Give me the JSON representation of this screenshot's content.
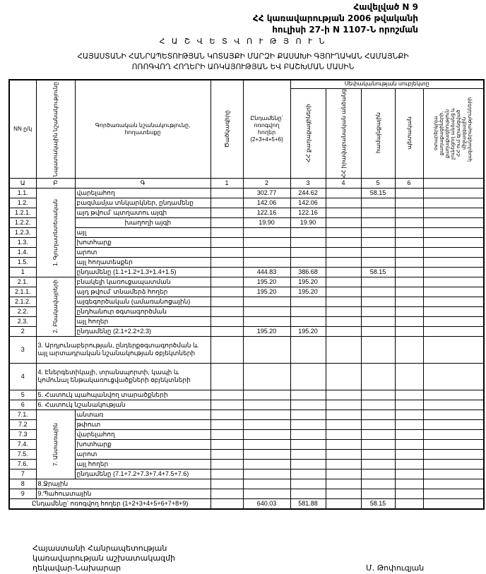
{
  "annex": {
    "line1": "Հավելված N 9",
    "line2": "ՀՀ կառավարության 2006 թվականի",
    "line3": "հուլիսի 27-ի N 1107-Ն որոշման"
  },
  "title": "Հ Ա Շ Վ Ե Տ Վ Ո Ւ Թ Յ Ո Ւ Ն",
  "subtitle": {
    "line1": "ՀԱՅԱՍՏԱՆԻ ՀԱՆՐԱՊԵՏՈՒԹՅԱՆ ԿՈՏԱՅՔԻ ՄԱՐԶԻ ՔԱՍԱԽԻ ԳՅՈՒՂԱԿԱՆ ՀԱՄԱՅՆՔԻ",
    "line2": "ՈՌՈԳՎՈՂ ՀՈՂԵՐԻ ԱՌԿԱՅՈՒԹՅԱՆ ԵՎ ԲԱՇԽՄԱՆ ՄԱՍԻՆ"
  },
  "table": {
    "headers": {
      "nn": "NN ը/կ",
      "purpose": "Նպատակային նշանակությունը",
      "function": "Գործառական նշանակությունը, հողատեսքը",
      "code": "Ծածկագիրը",
      "total": "Ընդամենը՝ ոռոգվող հողեր (2+3+4+5+6)",
      "ownership": "Սեփականության սուբյեկտը",
      "owners": [
        "ՀՀ քաղաքացիների",
        "ՀՀ իրավաբանական անձանց",
        "համայնքային",
        "պետական",
        "օտարերկրյա քաղաքացիների, քաղաքացիություն չունեցող անձանց և ՀՀ-ում գրանցված միջազգային կազմակերպությունների"
      ]
    },
    "letters": [
      "Ա",
      "Բ",
      "Գ",
      "1",
      "2",
      "3",
      "4",
      "5",
      "6"
    ],
    "categories": {
      "c1": "1. Գյուղատնտեսական",
      "c2": "2. Բնակավայրերի",
      "c7": "7. Անտառային"
    },
    "rows": [
      {
        "code": "1.1.",
        "desc": "վարելահող",
        "vals": [
          "",
          "302.77",
          "244.62",
          "",
          "58.15",
          "",
          ""
        ]
      },
      {
        "code": "1.2.",
        "desc": "բազմամյա տնկարկներ, ընդամենը",
        "vals": [
          "",
          "142.06",
          "142.06",
          "",
          "",
          "",
          ""
        ]
      },
      {
        "code": "1.2.1.",
        "desc": "այդ թվում՝        պտղատու այգի",
        "vals": [
          "",
          "122.16",
          "122.16",
          "",
          "",
          "",
          ""
        ]
      },
      {
        "code": "1.2.2.",
        "desc": "խաղողի այգի",
        "vals": [
          "",
          "19.90",
          "19.90",
          "",
          "",
          "",
          ""
        ]
      },
      {
        "code": "1.2.3.",
        "desc": "այլ",
        "vals": [
          "",
          "",
          "",
          "",
          "",
          "",
          ""
        ]
      },
      {
        "code": "1.3.",
        "desc": "խոտհարք",
        "vals": [
          "",
          "",
          "",
          "",
          "",
          "",
          ""
        ]
      },
      {
        "code": "1.4.",
        "desc": "արոտ",
        "vals": [
          "",
          "",
          "",
          "",
          "",
          "",
          ""
        ]
      },
      {
        "code": "1.5.",
        "desc": "այլ հողատեսքեր",
        "vals": [
          "",
          "",
          "",
          "",
          "",
          "",
          ""
        ]
      },
      {
        "code": "1",
        "desc": "ընդամենը (1.1+1.2+1.3+1.4+1.5)",
        "vals": [
          "",
          "444.83",
          "386.68",
          "",
          "58.15",
          "",
          ""
        ]
      },
      {
        "code": "2.1.",
        "desc": "բնակելի կառուցապատման",
        "vals": [
          "",
          "195.20",
          "195.20",
          "",
          "",
          "",
          ""
        ]
      },
      {
        "code": "2.1.1.",
        "desc": "այդ թվում՝ տնամերձ հողեր",
        "vals": [
          "",
          "195.20",
          "195.20",
          "",
          "",
          "",
          ""
        ]
      },
      {
        "code": "2.1.2.",
        "desc": "այգեգործական (ամառանոցային)",
        "vals": [
          "",
          "",
          "",
          "",
          "",
          "",
          ""
        ]
      },
      {
        "code": "2.2.",
        "desc": "ընդհանուր օգտագործման",
        "vals": [
          "",
          "",
          "",
          "",
          "",
          "",
          ""
        ]
      },
      {
        "code": "2.3.",
        "desc": "այլ հողեր",
        "vals": [
          "",
          "",
          "",
          "",
          "",
          "",
          ""
        ]
      },
      {
        "code": "2",
        "desc": "ընդամենը (2.1+2.2+2.3)",
        "vals": [
          "",
          "195.20",
          "195.20",
          "",
          "",
          "",
          ""
        ]
      },
      {
        "code": "3",
        "desc": "3. Արդյունաբերության, ընդերքօգտագործման և այլ արտադրական նշանակության օբյեկտների",
        "vals": [
          "",
          "",
          "",
          "",
          "",
          "",
          ""
        ]
      },
      {
        "code": "4",
        "desc": "4. Էներգետիկայի, տրանսպորտի, կապի և կոմունալ ենթակառուցվածքների օբյեկտների",
        "vals": [
          "",
          "",
          "",
          "",
          "",
          "",
          ""
        ]
      },
      {
        "code": "5",
        "desc": "5. Հատուկ պահպանվող տարածքների",
        "vals": [
          "",
          "",
          "",
          "",
          "",
          "",
          ""
        ]
      },
      {
        "code": "6",
        "desc": "6. Հատուկ նշանակության",
        "vals": [
          "",
          "",
          "",
          "",
          "",
          "",
          ""
        ]
      },
      {
        "code": "7.1.",
        "desc": "անտառ",
        "vals": [
          "",
          "",
          "",
          "",
          "",
          "",
          ""
        ]
      },
      {
        "code": "7.2",
        "desc": "թփուտ",
        "vals": [
          "",
          "",
          "",
          "",
          "",
          "",
          ""
        ]
      },
      {
        "code": "7.3",
        "desc": "վարելահող",
        "vals": [
          "",
          "",
          "",
          "",
          "",
          "",
          ""
        ]
      },
      {
        "code": "7.4.",
        "desc": "խոտհարք",
        "vals": [
          "",
          "",
          "",
          "",
          "",
          "",
          ""
        ]
      },
      {
        "code": "7.5.",
        "desc": "արոտ",
        "vals": [
          "",
          "",
          "",
          "",
          "",
          "",
          ""
        ]
      },
      {
        "code": "7.6.",
        "desc": "այլ հողեր",
        "vals": [
          "",
          "",
          "",
          "",
          "",
          "",
          ""
        ]
      },
      {
        "code": "7",
        "desc": "ընդամենը (7.1+7.2+7.3+7.4+7.5+7.6)",
        "vals": [
          "",
          "",
          "",
          "",
          "",
          "",
          ""
        ]
      },
      {
        "code": "8",
        "desc": "8.Ջրային",
        "vals": [
          "",
          "",
          "",
          "",
          "",
          "",
          ""
        ]
      },
      {
        "code": "9",
        "desc": "9.Պահուստային",
        "vals": [
          "",
          "",
          "",
          "",
          "",
          "",
          ""
        ]
      }
    ],
    "grand_total": {
      "desc": "Ընդամենը՝ ոռոգվող հողեր (1+2+3+4+5+6+7+8+9)",
      "vals": [
        "",
        "640.03",
        "581.88",
        "",
        "58.15",
        "",
        ""
      ]
    }
  },
  "signature": {
    "line1": "Հայաստանի Հանրապետության",
    "line2": "կառավարության աշխատակազմի",
    "line3": "ղեկավար-Նախարար",
    "name": "Մ. Թոփուզյան"
  }
}
